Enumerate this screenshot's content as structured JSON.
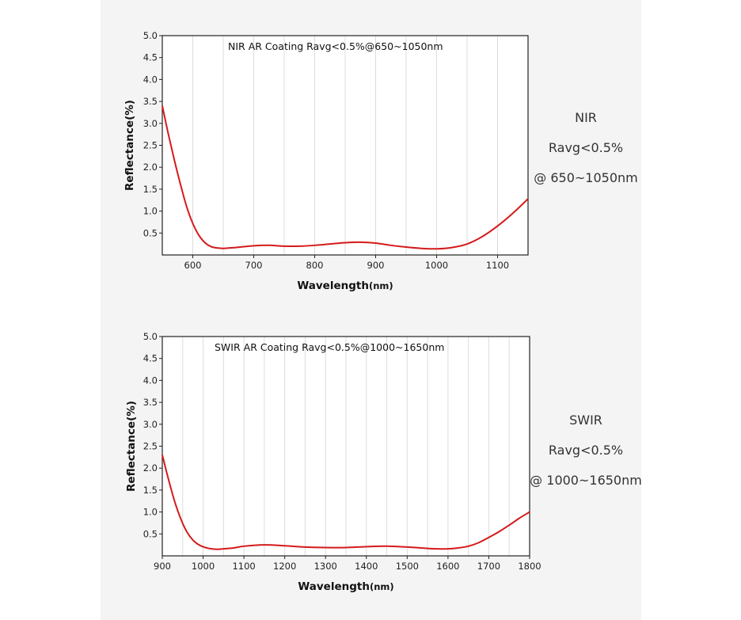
{
  "chart_data": [
    {
      "type": "line",
      "title": "NIR AR Coating Ravg<0.5%@650~1050nm",
      "xlabel": "Wavelength",
      "xunit": "(nm)",
      "ylabel": "Reflectance(%)",
      "xlim": [
        550,
        1150
      ],
      "ylim": [
        0,
        5.0
      ],
      "xticks": [
        600,
        700,
        800,
        900,
        1000,
        1100
      ],
      "yticks": [
        0.5,
        1.0,
        1.5,
        2.0,
        2.5,
        3.0,
        3.5,
        4.0,
        4.5,
        5.0
      ],
      "grid": true,
      "series": [
        {
          "color": "#d51a1a",
          "x": [
            550,
            560,
            570,
            580,
            590,
            600,
            610,
            620,
            630,
            640,
            650,
            660,
            670,
            700,
            725,
            750,
            775,
            800,
            825,
            850,
            875,
            900,
            925,
            950,
            975,
            1000,
            1025,
            1050,
            1075,
            1100,
            1125,
            1150
          ],
          "y": [
            3.4,
            2.75,
            2.15,
            1.6,
            1.1,
            0.72,
            0.45,
            0.28,
            0.19,
            0.16,
            0.15,
            0.16,
            0.17,
            0.21,
            0.22,
            0.2,
            0.2,
            0.22,
            0.25,
            0.28,
            0.29,
            0.27,
            0.22,
            0.18,
            0.15,
            0.14,
            0.17,
            0.25,
            0.42,
            0.66,
            0.95,
            1.28
          ]
        }
      ],
      "side_text": [
        "NIR",
        "Ravg<0.5%",
        "@ 650~1050nm"
      ]
    },
    {
      "type": "line",
      "title": "SWIR AR Coating Ravg<0.5%@1000~1650nm",
      "xlabel": "Wavelength",
      "xunit": "(nm)",
      "ylabel": "Reflectance(%)",
      "xlim": [
        900,
        1800
      ],
      "ylim": [
        0,
        5.0
      ],
      "xticks": [
        900,
        1000,
        1100,
        1200,
        1300,
        1400,
        1500,
        1600,
        1700,
        1800
      ],
      "yticks": [
        0.5,
        1.0,
        1.5,
        2.0,
        2.5,
        3.0,
        3.5,
        4.0,
        4.5,
        5.0
      ],
      "grid": true,
      "series": [
        {
          "color": "#d51a1a",
          "x": [
            900,
            915,
            930,
            945,
            960,
            975,
            990,
            1005,
            1020,
            1035,
            1050,
            1075,
            1100,
            1150,
            1200,
            1250,
            1300,
            1350,
            1400,
            1450,
            1500,
            1550,
            1575,
            1600,
            1625,
            1650,
            1675,
            1700,
            1725,
            1750,
            1775,
            1800
          ],
          "y": [
            2.3,
            1.75,
            1.25,
            0.85,
            0.55,
            0.36,
            0.25,
            0.19,
            0.16,
            0.15,
            0.16,
            0.18,
            0.22,
            0.25,
            0.23,
            0.2,
            0.19,
            0.19,
            0.21,
            0.22,
            0.2,
            0.17,
            0.16,
            0.16,
            0.18,
            0.22,
            0.3,
            0.42,
            0.55,
            0.7,
            0.86,
            1.0
          ]
        }
      ],
      "side_text": [
        "SWIR",
        "Ravg<0.5%",
        "@ 1000~1650nm"
      ]
    }
  ]
}
